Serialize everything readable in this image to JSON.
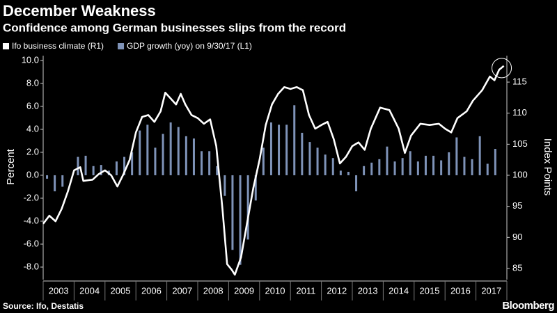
{
  "chart_data": {
    "type": "bar-line",
    "title": "December Weakness",
    "subtitle": "Confidence among German businesses slips from the record",
    "y_label": "Percent",
    "y2_label": "Index Points",
    "source": "Source: Ifo, Destatis",
    "brand": "Bloomberg",
    "categories": [
      "2003",
      "2004",
      "2005",
      "2006",
      "2007",
      "2008",
      "2009",
      "2010",
      "2011",
      "2012",
      "2013",
      "2014",
      "2015",
      "2016",
      "2017"
    ],
    "xlim": [
      2003,
      2018
    ],
    "ylim": [
      -8.97,
      10.42
    ],
    "yticks": [
      {
        "value": 10,
        "label": "10.0"
      },
      {
        "value": 8,
        "label": "8.0"
      },
      {
        "value": 6,
        "label": "6.0"
      },
      {
        "value": 4,
        "label": "4.0"
      },
      {
        "value": 2,
        "label": "2.0"
      },
      {
        "value": 0,
        "label": "0.0"
      },
      {
        "value": -2,
        "label": "-2.0"
      },
      {
        "value": -4,
        "label": "-4.0"
      },
      {
        "value": -6,
        "label": "-6.0"
      },
      {
        "value": -8,
        "label": "-8.0"
      }
    ],
    "y2lim": [
      83.43,
      119.26
    ],
    "y2ticks": [
      85,
      90,
      95,
      100,
      105,
      110,
      115
    ],
    "series": [
      {
        "name": "Ifo business climate (R1)",
        "color": "#ffffff",
        "axis": "y2",
        "kind": "line",
        "x": [
          2003.0,
          2003.2,
          2003.4,
          2003.6,
          2003.8,
          2004.0,
          2004.2,
          2004.3,
          2004.6,
          2004.8,
          2005.0,
          2005.2,
          2005.4,
          2005.6,
          2005.8,
          2006.0,
          2006.2,
          2006.4,
          2006.6,
          2006.8,
          2006.95,
          2007.1,
          2007.3,
          2007.45,
          2007.6,
          2007.8,
          2008.0,
          2008.2,
          2008.4,
          2008.6,
          2008.8,
          2008.95,
          2009.1,
          2009.2,
          2009.4,
          2009.6,
          2009.8,
          2010.0,
          2010.2,
          2010.4,
          2010.6,
          2010.8,
          2011.0,
          2011.2,
          2011.4,
          2011.6,
          2011.8,
          2012.0,
          2012.2,
          2012.4,
          2012.6,
          2012.8,
          2013.0,
          2013.2,
          2013.4,
          2013.6,
          2013.9,
          2014.2,
          2014.5,
          2014.7,
          2014.9,
          2015.2,
          2015.5,
          2015.8,
          2016.0,
          2016.2,
          2016.4,
          2016.7,
          2016.9,
          2017.2,
          2017.45,
          2017.6,
          2017.75,
          2017.9
        ],
        "values": [
          92.2,
          93.5,
          92.6,
          94.6,
          97.4,
          100.8,
          101.3,
          99.1,
          99.3,
          100.2,
          100.8,
          100,
          98.2,
          100.2,
          102.5,
          106.9,
          109.4,
          109.7,
          108.6,
          110.3,
          113.3,
          112.5,
          111.4,
          113.1,
          111.4,
          109.7,
          109.2,
          108.3,
          109,
          104.7,
          94.6,
          85.7,
          84.8,
          84,
          86.8,
          92.4,
          98,
          102.5,
          108.1,
          111.4,
          113.1,
          114.2,
          113.9,
          114.2,
          113.7,
          109.7,
          107.5,
          108.1,
          108.6,
          105.8,
          101.9,
          103,
          104.7,
          105.3,
          104.1,
          107.5,
          110.9,
          110.5,
          107.5,
          103.6,
          106.4,
          108.3,
          108.1,
          108.3,
          107.5,
          106.9,
          109.2,
          110.3,
          112,
          113.7,
          115.9,
          115.3,
          117,
          117.6
        ]
      },
      {
        "name": "GDP growth (yoy) on 9/30/17 (L1)",
        "color": "#7f93b8",
        "axis": "y",
        "kind": "bar",
        "x": [
          2003.125,
          2003.375,
          2003.625,
          2003.875,
          2004.125,
          2004.375,
          2004.625,
          2004.875,
          2005.125,
          2005.375,
          2005.625,
          2005.875,
          2006.125,
          2006.375,
          2006.625,
          2006.875,
          2007.125,
          2007.375,
          2007.625,
          2007.875,
          2008.125,
          2008.375,
          2008.625,
          2008.875,
          2009.125,
          2009.375,
          2009.625,
          2009.875,
          2010.125,
          2010.375,
          2010.625,
          2010.875,
          2011.125,
          2011.375,
          2011.625,
          2011.875,
          2012.125,
          2012.375,
          2012.625,
          2012.875,
          2013.125,
          2013.375,
          2013.625,
          2013.875,
          2014.125,
          2014.375,
          2014.625,
          2014.875,
          2015.125,
          2015.375,
          2015.625,
          2015.875,
          2016.125,
          2016.375,
          2016.625,
          2016.875,
          2017.125,
          2017.375,
          2017.625
        ],
        "values": [
          -0.3,
          -1.4,
          -1.0,
          0.0,
          1.6,
          1.7,
          0.8,
          0.9,
          0.4,
          1.2,
          1.6,
          2.0,
          3.9,
          4.4,
          2.4,
          3.6,
          4.6,
          4.2,
          3.4,
          3.2,
          2.1,
          2.1,
          0.8,
          -1.8,
          -6.5,
          -7.8,
          -5.6,
          -2.2,
          2.4,
          4.6,
          4.4,
          4.4,
          6.1,
          3.7,
          2.9,
          2.4,
          1.8,
          1.5,
          0.4,
          0.3,
          -1.4,
          0.8,
          1.1,
          1.4,
          2.5,
          1.2,
          1.5,
          2.1,
          1.2,
          1.7,
          1.7,
          1.3,
          2.0,
          3.3,
          1.6,
          1.4,
          3.4,
          1.0,
          2.3
        ]
      }
    ]
  }
}
